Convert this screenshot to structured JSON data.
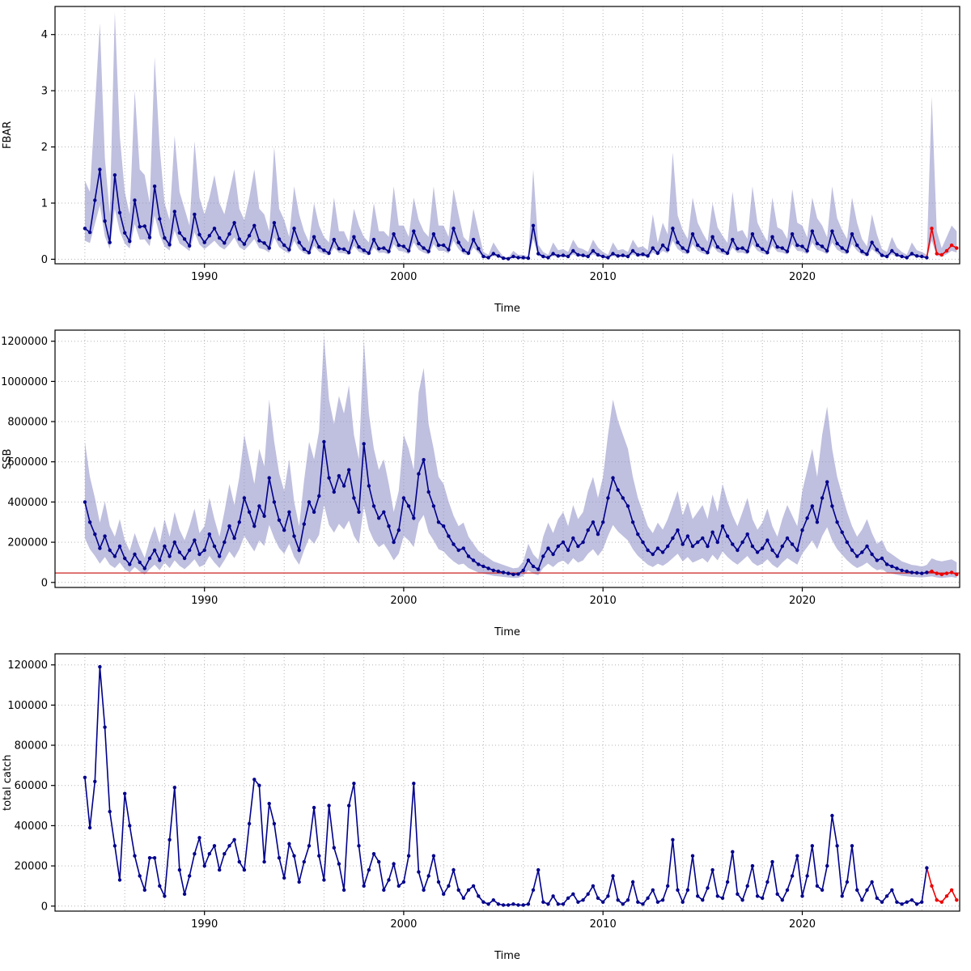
{
  "styles": {
    "line_color": "#00008B",
    "point_color": "#00008B",
    "forecast_color": "#EE0000",
    "band_color": "#8B8BC4",
    "band_opacity": 0.55,
    "grid_color": "#B4B4B4",
    "axis_color": "#000000",
    "refline_color": "#CC2222"
  },
  "chart_data": [
    {
      "type": "line",
      "title": "",
      "xlabel": "Time",
      "ylabel": "FBAR",
      "x_start": 1984,
      "dt": 0.25,
      "xlim": [
        1982.5,
        2027.9
      ],
      "ylim": [
        -0.08,
        4.5
      ],
      "x_ticks": [
        1990,
        2000,
        2010,
        2020
      ],
      "y_ticks": [
        0,
        1,
        2,
        3,
        4
      ],
      "x_grid": [
        1984,
        2027,
        2
      ],
      "n_forecast": 6,
      "legend": "none",
      "grid": true,
      "values_per_year": [
        [
          0.55,
          0.48,
          1.05,
          1.6
        ],
        [
          0.68,
          0.3,
          1.5,
          0.83
        ],
        [
          0.47,
          0.32,
          1.05,
          0.58
        ],
        [
          0.59,
          0.39,
          1.3,
          0.72
        ],
        [
          0.38,
          0.26,
          0.85,
          0.47
        ],
        [
          0.36,
          0.24,
          0.8,
          0.44
        ],
        [
          0.3,
          0.42,
          0.55,
          0.38
        ],
        [
          0.29,
          0.45,
          0.65,
          0.36
        ],
        [
          0.27,
          0.42,
          0.6,
          0.33
        ],
        [
          0.29,
          0.2,
          0.65,
          0.36
        ],
        [
          0.25,
          0.17,
          0.55,
          0.3
        ],
        [
          0.18,
          0.12,
          0.4,
          0.22
        ],
        [
          0.16,
          0.11,
          0.35,
          0.19
        ],
        [
          0.18,
          0.12,
          0.4,
          0.22
        ],
        [
          0.16,
          0.11,
          0.35,
          0.19
        ],
        [
          0.2,
          0.14,
          0.45,
          0.25
        ],
        [
          0.23,
          0.15,
          0.5,
          0.28
        ],
        [
          0.2,
          0.14,
          0.45,
          0.25
        ],
        [
          0.25,
          0.17,
          0.55,
          0.3
        ],
        [
          0.16,
          0.11,
          0.35,
          0.19
        ],
        [
          0.05,
          0.03,
          0.1,
          0.06
        ],
        [
          0.02,
          0.01,
          0.05,
          0.03
        ],
        [
          0.03,
          0.02,
          0.6,
          0.1
        ],
        [
          0.05,
          0.03,
          0.1,
          0.06
        ],
        [
          0.07,
          0.05,
          0.15,
          0.08
        ],
        [
          0.07,
          0.05,
          0.15,
          0.08
        ],
        [
          0.05,
          0.03,
          0.1,
          0.06
        ],
        [
          0.07,
          0.05,
          0.15,
          0.08
        ],
        [
          0.09,
          0.06,
          0.2,
          0.11
        ],
        [
          0.25,
          0.17,
          0.55,
          0.3
        ],
        [
          0.2,
          0.14,
          0.45,
          0.25
        ],
        [
          0.18,
          0.12,
          0.4,
          0.22
        ],
        [
          0.16,
          0.11,
          0.35,
          0.19
        ],
        [
          0.2,
          0.14,
          0.45,
          0.25
        ],
        [
          0.18,
          0.12,
          0.4,
          0.22
        ],
        [
          0.2,
          0.14,
          0.45,
          0.25
        ],
        [
          0.23,
          0.15,
          0.5,
          0.28
        ],
        [
          0.23,
          0.15,
          0.5,
          0.28
        ],
        [
          0.2,
          0.14,
          0.45,
          0.25
        ],
        [
          0.14,
          0.09,
          0.3,
          0.17
        ],
        [
          0.07,
          0.05,
          0.15,
          0.08
        ],
        [
          0.05,
          0.03,
          0.1,
          0.06
        ],
        [
          0.05,
          0.03,
          0.55,
          0.1
        ],
        [
          0.08,
          0.15,
          0.25,
          0.2
        ]
      ],
      "band": {
        "lo_factor": 0.6,
        "hi_per_year": [
          [
            1.4,
            1.2,
            2.7,
            4.2
          ],
          [
            1.8,
            0.8,
            4.4,
            2.2
          ],
          [
            1.2,
            0.8,
            3.0,
            1.6
          ],
          [
            1.5,
            1.0,
            3.6,
            2.0
          ],
          [
            1.0,
            0.7,
            2.2,
            1.2
          ],
          [
            0.9,
            0.6,
            2.1,
            1.1
          ],
          [
            0.8,
            1.1,
            1.5,
            1.0
          ],
          [
            0.8,
            1.2,
            1.6,
            0.9
          ],
          [
            0.7,
            1.1,
            1.6,
            0.9
          ],
          [
            0.8,
            0.5,
            2.0,
            0.9
          ],
          [
            0.7,
            0.4,
            1.3,
            0.8
          ],
          [
            0.5,
            0.3,
            1.0,
            0.6
          ],
          [
            0.4,
            0.3,
            1.1,
            0.5
          ],
          [
            0.5,
            0.3,
            0.9,
            0.6
          ],
          [
            0.4,
            0.3,
            1.0,
            0.5
          ],
          [
            0.5,
            0.4,
            1.3,
            0.6
          ],
          [
            0.6,
            0.4,
            1.1,
            0.7
          ],
          [
            0.5,
            0.4,
            1.3,
            0.6
          ],
          [
            0.6,
            0.4,
            1.25,
            0.8
          ],
          [
            0.4,
            0.3,
            0.9,
            0.5
          ],
          [
            0.13,
            0.08,
            0.3,
            0.16
          ],
          [
            0.05,
            0.03,
            0.15,
            0.08
          ],
          [
            0.08,
            0.05,
            1.6,
            0.26
          ],
          [
            0.13,
            0.08,
            0.3,
            0.16
          ],
          [
            0.18,
            0.13,
            0.35,
            0.21
          ],
          [
            0.18,
            0.13,
            0.35,
            0.21
          ],
          [
            0.13,
            0.08,
            0.3,
            0.16
          ],
          [
            0.18,
            0.13,
            0.35,
            0.21
          ],
          [
            0.23,
            0.16,
            0.8,
            0.29
          ],
          [
            0.65,
            0.44,
            1.9,
            0.78
          ],
          [
            0.52,
            0.36,
            1.1,
            0.65
          ],
          [
            0.47,
            0.31,
            1.0,
            0.57
          ],
          [
            0.42,
            0.29,
            1.2,
            0.49
          ],
          [
            0.52,
            0.36,
            1.3,
            0.65
          ],
          [
            0.47,
            0.31,
            1.1,
            0.57
          ],
          [
            0.52,
            0.36,
            1.25,
            0.65
          ],
          [
            0.6,
            0.39,
            1.1,
            0.73
          ],
          [
            0.6,
            0.39,
            1.3,
            0.73
          ],
          [
            0.52,
            0.36,
            1.1,
            0.65
          ],
          [
            0.36,
            0.23,
            0.8,
            0.44
          ],
          [
            0.18,
            0.13,
            0.4,
            0.21
          ],
          [
            0.13,
            0.08,
            0.3,
            0.16
          ],
          [
            0.13,
            0.08,
            2.9,
            0.5
          ],
          [
            0.2,
            0.4,
            0.6,
            0.5
          ]
        ]
      }
    },
    {
      "type": "line",
      "title": "",
      "xlabel": "Time",
      "ylabel": "SSB",
      "x_start": 1984,
      "dt": 0.25,
      "xlim": [
        1982.5,
        2027.9
      ],
      "ylim": [
        -25000,
        1255000
      ],
      "x_ticks": [
        1990,
        2000,
        2010,
        2020
      ],
      "y_ticks": [
        0,
        200000,
        400000,
        600000,
        800000,
        1000000,
        1200000
      ],
      "x_grid": [
        1984,
        2027,
        2
      ],
      "n_forecast": 6,
      "refline": 47000,
      "legend": "none",
      "grid": true,
      "values_per_year": [
        [
          400000,
          300000,
          240000,
          170000
        ],
        [
          230000,
          160000,
          130000,
          180000
        ],
        [
          120000,
          90000,
          140000,
          100000
        ],
        [
          70000,
          120000,
          160000,
          110000
        ],
        [
          180000,
          130000,
          200000,
          150000
        ],
        [
          120000,
          160000,
          210000,
          140000
        ],
        [
          160000,
          240000,
          180000,
          130000
        ],
        [
          200000,
          280000,
          220000,
          300000
        ],
        [
          420000,
          350000,
          280000,
          380000
        ],
        [
          330000,
          520000,
          400000,
          310000
        ],
        [
          260000,
          350000,
          230000,
          160000
        ],
        [
          290000,
          400000,
          350000,
          430000
        ],
        [
          700000,
          520000,
          450000,
          530000
        ],
        [
          480000,
          560000,
          420000,
          350000
        ],
        [
          690000,
          480000,
          380000,
          320000
        ],
        [
          350000,
          280000,
          200000,
          260000
        ],
        [
          420000,
          380000,
          320000,
          540000
        ],
        [
          610000,
          450000,
          380000,
          300000
        ],
        [
          280000,
          230000,
          190000,
          160000
        ],
        [
          170000,
          130000,
          110000,
          90000
        ],
        [
          80000,
          70000,
          60000,
          55000
        ],
        [
          50000,
          45000,
          40000,
          42000
        ],
        [
          60000,
          110000,
          80000,
          65000
        ],
        [
          130000,
          170000,
          140000,
          180000
        ],
        [
          200000,
          160000,
          220000,
          180000
        ],
        [
          200000,
          260000,
          300000,
          240000
        ],
        [
          300000,
          420000,
          520000,
          460000
        ],
        [
          420000,
          380000,
          300000,
          240000
        ],
        [
          200000,
          160000,
          140000,
          170000
        ],
        [
          150000,
          180000,
          220000,
          260000
        ],
        [
          190000,
          230000,
          180000,
          200000
        ],
        [
          220000,
          180000,
          250000,
          200000
        ],
        [
          280000,
          230000,
          190000,
          160000
        ],
        [
          200000,
          240000,
          180000,
          150000
        ],
        [
          170000,
          210000,
          160000,
          130000
        ],
        [
          180000,
          220000,
          190000,
          160000
        ],
        [
          260000,
          320000,
          380000,
          300000
        ],
        [
          420000,
          500000,
          380000,
          300000
        ],
        [
          250000,
          200000,
          160000,
          130000
        ],
        [
          150000,
          180000,
          140000,
          110000
        ],
        [
          120000,
          90000,
          80000,
          70000
        ],
        [
          60000,
          55000,
          50000,
          48000
        ],
        [
          45000,
          50000,
          55000,
          45000
        ],
        [
          40000,
          45000,
          50000,
          40000
        ]
      ],
      "band": {
        "lo_factor": 0.55,
        "hi_factor": 1.75,
        "hi_tail": [
          120000,
          110000,
          105000,
          110000,
          115000,
          100000
        ]
      }
    },
    {
      "type": "line",
      "title": "",
      "xlabel": "Time",
      "ylabel": "total catch",
      "x_start": 1984,
      "dt": 0.25,
      "xlim": [
        1982.5,
        2027.9
      ],
      "ylim": [
        -2500,
        125500
      ],
      "x_ticks": [
        1990,
        2000,
        2010,
        2020
      ],
      "y_ticks": [
        0,
        20000,
        40000,
        60000,
        80000,
        100000,
        120000
      ],
      "x_grid": [
        1984,
        2027,
        2
      ],
      "n_forecast": 6,
      "legend": "none",
      "grid": true,
      "values_per_year": [
        [
          64000,
          39000,
          62000,
          119000
        ],
        [
          89000,
          47000,
          30000,
          13000
        ],
        [
          56000,
          40000,
          25000,
          15000
        ],
        [
          8000,
          24000,
          24000,
          10000
        ],
        [
          5000,
          33000,
          59000,
          18000
        ],
        [
          6000,
          15000,
          26000,
          34000
        ],
        [
          20000,
          26000,
          30000,
          18000
        ],
        [
          26000,
          30000,
          33000,
          22000
        ],
        [
          18000,
          41000,
          63000,
          60000
        ],
        [
          22000,
          51000,
          41000,
          24000
        ],
        [
          14000,
          31000,
          25000,
          12000
        ],
        [
          22000,
          30000,
          49000,
          25000
        ],
        [
          13000,
          50000,
          29000,
          21000
        ],
        [
          8000,
          50000,
          61000,
          30000
        ],
        [
          10000,
          18000,
          26000,
          22000
        ],
        [
          8000,
          13000,
          21000,
          10000
        ],
        [
          12000,
          25000,
          61000,
          17000
        ],
        [
          8000,
          15000,
          25000,
          12000
        ],
        [
          6000,
          10000,
          18000,
          8000
        ],
        [
          4000,
          8000,
          10000,
          5000
        ],
        [
          2000,
          1000,
          3000,
          1000
        ],
        [
          500,
          500,
          1000,
          500
        ],
        [
          500,
          1000,
          8000,
          18000
        ],
        [
          2000,
          1000,
          5000,
          1000
        ],
        [
          1000,
          4000,
          6000,
          2000
        ],
        [
          3000,
          6000,
          10000,
          4000
        ],
        [
          2000,
          5000,
          15000,
          3000
        ],
        [
          1000,
          3000,
          12000,
          2000
        ],
        [
          1000,
          4000,
          8000,
          2000
        ],
        [
          3000,
          10000,
          33000,
          8000
        ],
        [
          2000,
          8000,
          25000,
          5000
        ],
        [
          3000,
          9000,
          18000,
          5000
        ],
        [
          4000,
          12000,
          27000,
          6000
        ],
        [
          3000,
          10000,
          20000,
          5000
        ],
        [
          4000,
          12000,
          22000,
          6000
        ],
        [
          3000,
          8000,
          15000,
          25000
        ],
        [
          5000,
          15000,
          30000,
          10000
        ],
        [
          8000,
          20000,
          45000,
          30000
        ],
        [
          5000,
          12000,
          30000,
          8000
        ],
        [
          3000,
          8000,
          12000,
          4000
        ],
        [
          2000,
          5000,
          8000,
          2000
        ],
        [
          1000,
          2000,
          3000,
          1000
        ],
        [
          2000,
          19000,
          10000,
          3000
        ],
        [
          2000,
          5000,
          8000,
          3000
        ]
      ]
    }
  ]
}
